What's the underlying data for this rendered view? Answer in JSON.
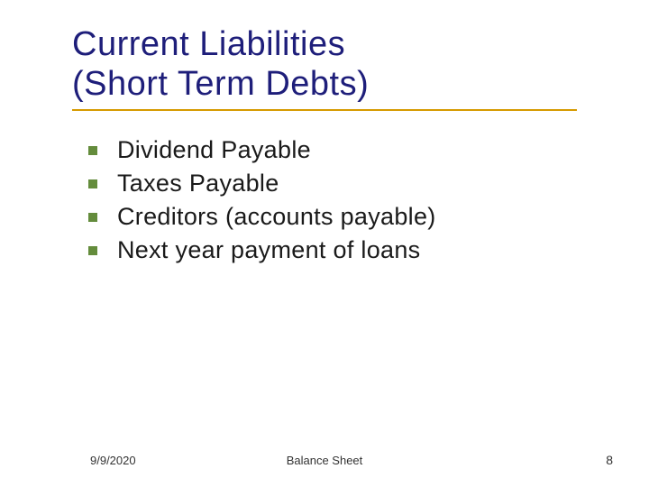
{
  "title": {
    "line1": "Current Liabilities",
    "line2": "(Short Term Debts)",
    "color": "#1e1e7a",
    "fontsize": 38,
    "underline_color": "#d69a00"
  },
  "bullets": {
    "items": [
      {
        "text": "Dividend Payable"
      },
      {
        "text": "Taxes Payable"
      },
      {
        "text": "Creditors (accounts payable)"
      },
      {
        "text": "Next year payment of loans"
      }
    ],
    "bullet_color": "#648c3c",
    "text_color": "#1a1a1a",
    "fontsize": 27
  },
  "footer": {
    "date": "9/9/2020",
    "center": "Balance Sheet",
    "page": "8",
    "fontsize": 13,
    "color": "#333333"
  },
  "background_color": "#ffffff"
}
